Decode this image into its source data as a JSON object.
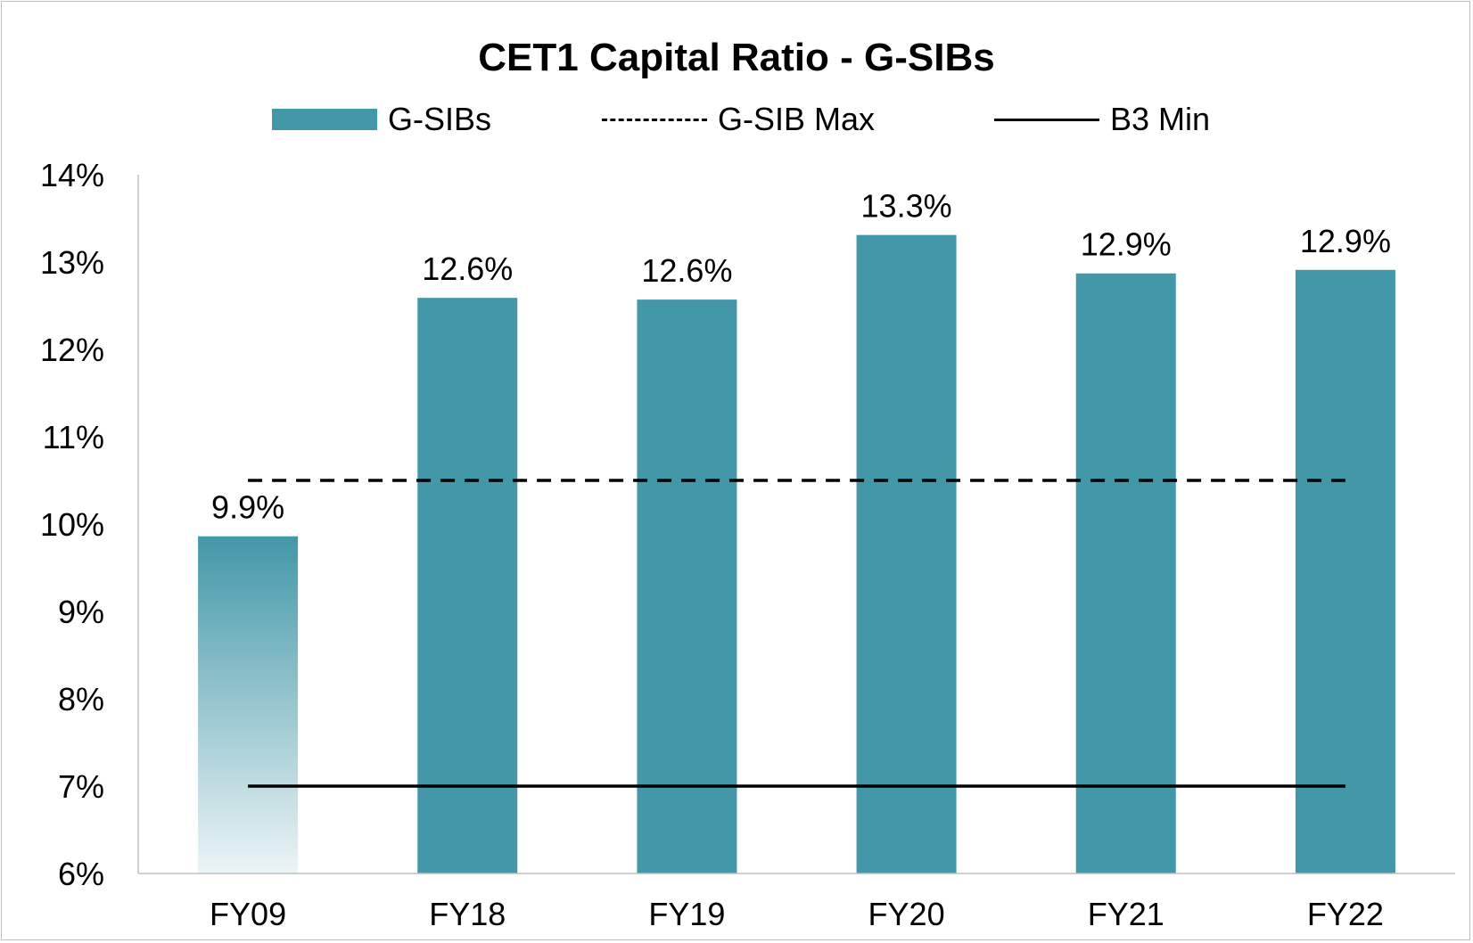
{
  "chart_data": {
    "type": "bar",
    "title": "CET1 Capital Ratio - G-SIBs",
    "categories": [
      "FY09",
      "FY18",
      "FY19",
      "FY20",
      "FY21",
      "FY22"
    ],
    "series": [
      {
        "name": "G-SIBs",
        "values": [
          9.86,
          12.59,
          12.57,
          13.31,
          12.87,
          12.91
        ],
        "color": "#4298a8",
        "kind": "bar"
      },
      {
        "name": "G-SIB Max",
        "values": [
          10.5,
          10.5,
          10.5,
          10.5,
          10.5,
          10.5
        ],
        "color": "#000000",
        "kind": "dashed-line"
      },
      {
        "name": "B3 Min",
        "values": [
          7.0,
          7.0,
          7.0,
          7.0,
          7.0,
          7.0
        ],
        "color": "#000000",
        "kind": "solid-line"
      }
    ],
    "data_labels": [
      "9.9%",
      "12.6%",
      "12.6%",
      "13.3%",
      "12.9%",
      "12.9%"
    ],
    "ylim": [
      6,
      14
    ],
    "yticks": [
      6,
      7,
      8,
      9,
      10,
      11,
      12,
      13,
      14
    ],
    "ytick_labels": [
      "6%",
      "7%",
      "8%",
      "9%",
      "10%",
      "11%",
      "12%",
      "13%",
      "14%"
    ],
    "first_bar_gradient": true,
    "xlabel": "",
    "ylabel": "",
    "legend_position": "top",
    "grid": false
  }
}
